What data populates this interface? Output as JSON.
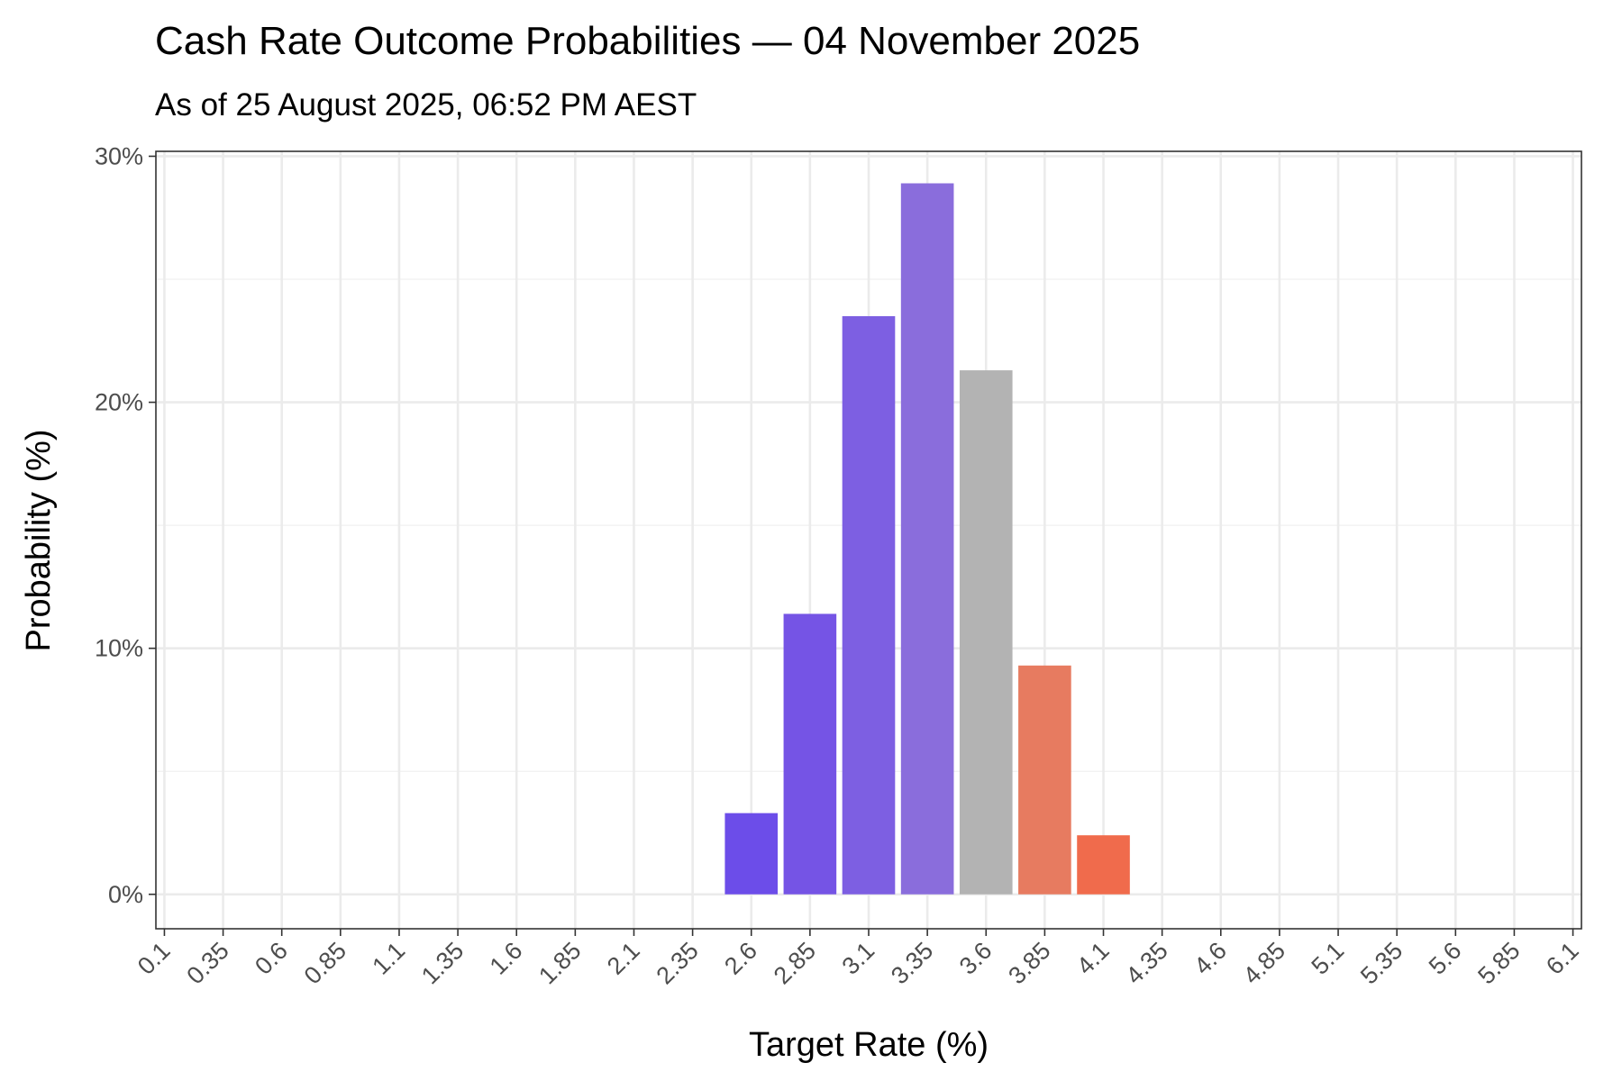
{
  "chart_data": {
    "type": "bar",
    "title": "Cash Rate Outcome Probabilities — 04 November 2025",
    "subtitle": "As of 25 August 2025, 06:52 PM AEST",
    "xlabel": "Target Rate (%)",
    "ylabel": "Probability (%)",
    "x_ticks": [
      "0.1",
      "0.35",
      "0.6",
      "0.85",
      "1.1",
      "1.35",
      "1.6",
      "1.85",
      "2.1",
      "2.35",
      "2.6",
      "2.85",
      "3.1",
      "3.35",
      "3.6",
      "3.85",
      "4.1",
      "4.35",
      "4.6",
      "4.85",
      "5.1",
      "5.35",
      "5.6",
      "5.85",
      "6.1"
    ],
    "y_ticks": [
      "0%",
      "10%",
      "20%",
      "30%"
    ],
    "y_tick_values": [
      0,
      10,
      20,
      30
    ],
    "ylim": [
      -1.4,
      30.2
    ],
    "grid": true,
    "categories": [
      "2.6",
      "2.85",
      "3.1",
      "3.35",
      "3.6",
      "3.85",
      "4.1"
    ],
    "values": [
      3.3,
      11.4,
      23.5,
      28.9,
      21.3,
      9.3,
      2.4
    ],
    "colors": [
      "#6c4de9",
      "#7554e5",
      "#7d5fe2",
      "#8a6ddc",
      "#b3b3b3",
      "#e77b60",
      "#f06b4c"
    ]
  }
}
